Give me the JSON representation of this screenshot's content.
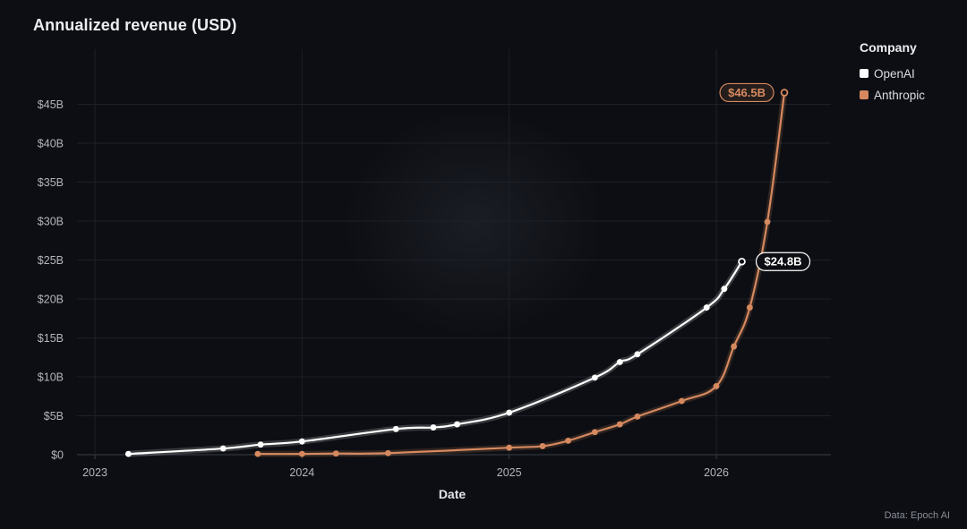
{
  "title": "Annualized revenue (USD)",
  "source": "Data: Epoch AI",
  "legend": {
    "title": "Company",
    "items": [
      {
        "label": "OpenAI",
        "color": "#ffffff"
      },
      {
        "label": "Anthropic",
        "color": "#d6895f"
      }
    ]
  },
  "chart_data": {
    "type": "line",
    "title": "Annualized revenue (USD)",
    "xlabel": "Date",
    "ylabel": "",
    "x_ticks": [
      "2023",
      "2024",
      "2025",
      "2026"
    ],
    "y_ticks": [
      "$0",
      "$5B",
      "$10B",
      "$15B",
      "$20B",
      "$25B",
      "$30B",
      "$35B",
      "$40B",
      "$45B"
    ],
    "xlim": [
      "2022-10-15",
      "2026-09-15"
    ],
    "ylim": [
      0,
      50
    ],
    "grid": true,
    "legend_position": "top-right",
    "series": [
      {
        "name": "OpenAI",
        "color": "#ffffff",
        "end_label": "$24.8B",
        "points": [
          [
            "2023-03-01",
            0.1
          ],
          [
            "2023-08-15",
            0.8
          ],
          [
            "2023-10-20",
            1.3
          ],
          [
            "2024-01-01",
            1.7
          ],
          [
            "2024-06-15",
            3.3
          ],
          [
            "2024-08-20",
            3.5
          ],
          [
            "2024-10-01",
            3.9
          ],
          [
            "2025-01-01",
            5.4
          ],
          [
            "2025-06-01",
            9.9
          ],
          [
            "2025-07-15",
            11.9
          ],
          [
            "2025-08-15",
            12.9
          ],
          [
            "2025-12-15",
            18.9
          ],
          [
            "2026-01-15",
            21.3
          ],
          [
            "2026-02-15",
            24.8
          ]
        ]
      },
      {
        "name": "Anthropic",
        "color": "#d6895f",
        "end_label": "$46.5B",
        "points": [
          [
            "2023-10-15",
            0.1
          ],
          [
            "2024-01-01",
            0.1
          ],
          [
            "2024-03-01",
            0.15
          ],
          [
            "2024-06-01",
            0.2
          ],
          [
            "2025-01-01",
            0.9
          ],
          [
            "2025-03-01",
            1.1
          ],
          [
            "2025-04-15",
            1.8
          ],
          [
            "2025-06-01",
            2.9
          ],
          [
            "2025-07-15",
            3.9
          ],
          [
            "2025-08-15",
            4.9
          ],
          [
            "2025-11-01",
            6.9
          ],
          [
            "2026-01-01",
            8.8
          ],
          [
            "2026-02-01",
            13.9
          ],
          [
            "2026-03-01",
            18.9
          ],
          [
            "2026-04-01",
            29.9
          ],
          [
            "2026-05-01",
            46.5
          ]
        ]
      }
    ]
  }
}
